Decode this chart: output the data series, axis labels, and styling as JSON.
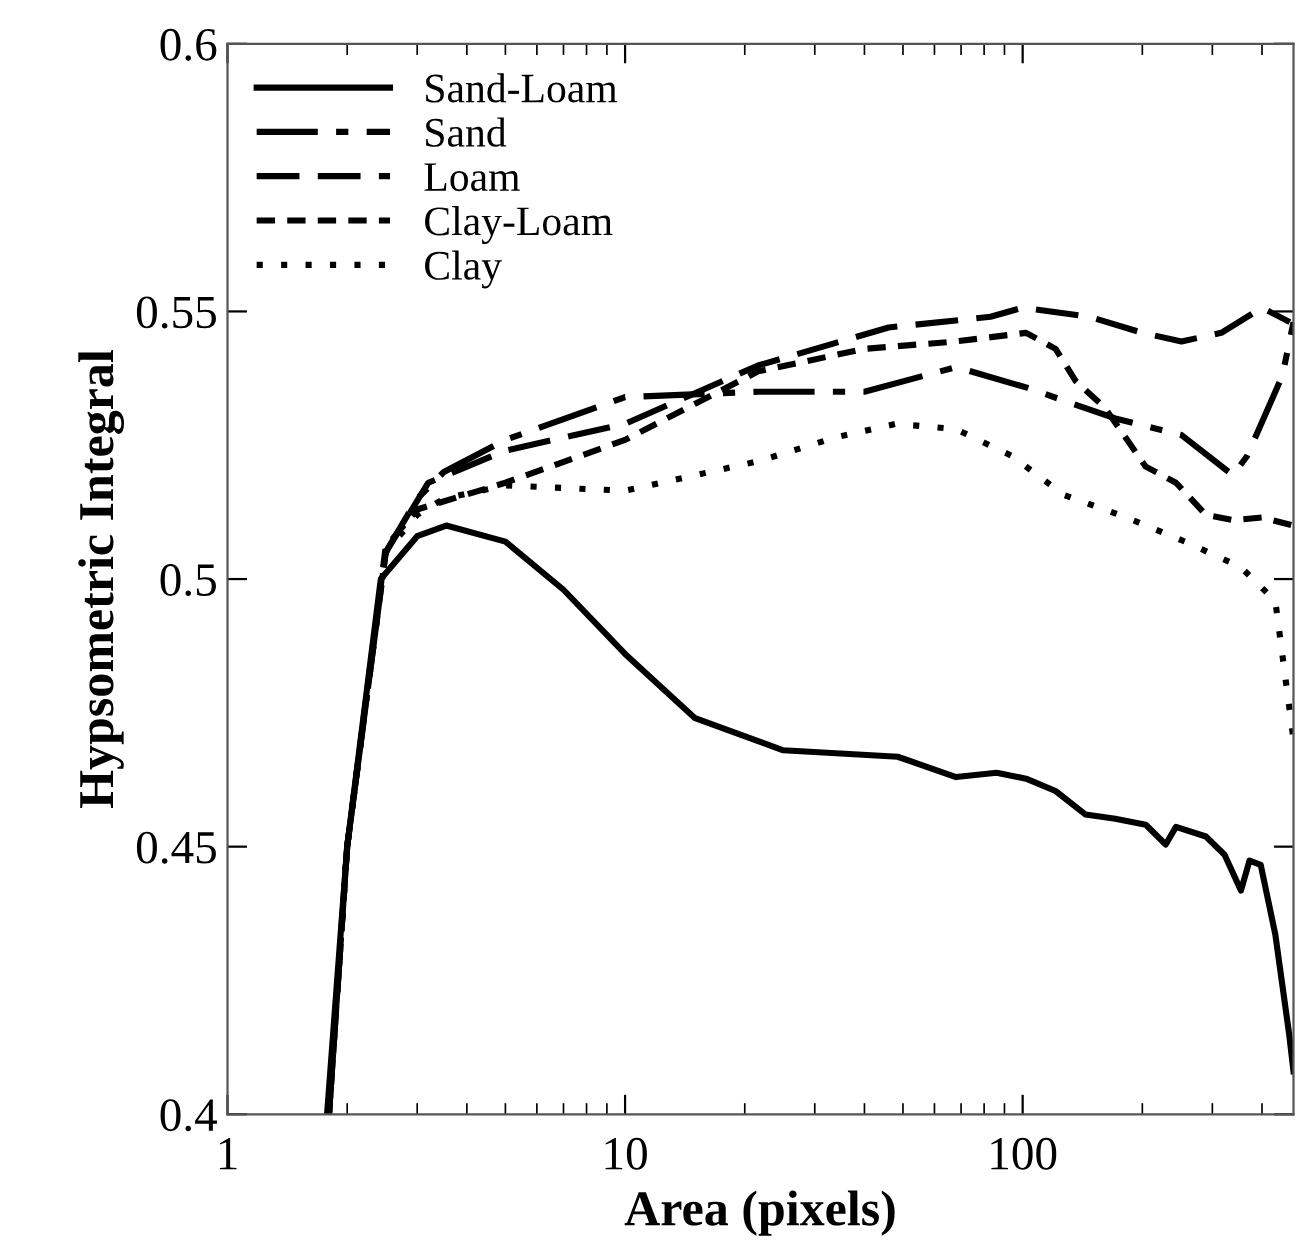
{
  "chart_data": {
    "type": "line",
    "xlabel": "Area (pixels)",
    "ylabel": "Hypsometric Integral",
    "log": "x",
    "xlim": [
      1,
      480
    ],
    "xticks": [
      1,
      10,
      100
    ],
    "ylim": [
      0.4,
      0.6
    ],
    "yticks": [
      0.4,
      0.45,
      0.5,
      0.55,
      0.6
    ],
    "grid": false,
    "legend": "top left",
    "marker": "none",
    "series": [
      {
        "name": "Sand-Loam",
        "color": "#000000",
        "line_style": "solid",
        "x": [
          1.78,
          2.0,
          2.43,
          3.0,
          3.55,
          5,
          7,
          10,
          15,
          25,
          48.5,
          68,
          86,
          102,
          121,
          144,
          171,
          204,
          229,
          243,
          289,
          322,
          354,
          372,
          397,
          432,
          468,
          480
        ],
        "values": [
          0.4,
          0.45,
          0.5,
          0.508,
          0.51,
          0.507,
          0.498,
          0.486,
          0.474,
          0.468,
          0.4668,
          0.463,
          0.4638,
          0.4627,
          0.4604,
          0.456,
          0.4552,
          0.4541,
          0.4504,
          0.4537,
          0.4519,
          0.4485,
          0.4418,
          0.4474,
          0.4466,
          0.4336,
          0.415,
          0.408
        ]
      },
      {
        "name": "Sand",
        "color": "#000000",
        "line_style": "dashdot",
        "x": [
          1.8,
          2.0,
          2.5,
          3.0,
          3.5,
          5,
          10,
          21.6,
          40,
          68,
          102,
          171,
          251,
          338,
          367,
          450,
          480
        ],
        "values": [
          0.4,
          0.45,
          0.505,
          0.515,
          0.52,
          0.526,
          0.534,
          0.535,
          0.535,
          0.5396,
          0.5358,
          0.53,
          0.5269,
          0.5194,
          0.523,
          0.538,
          0.548
        ]
      },
      {
        "name": "Loam",
        "color": "#000000",
        "line_style": "dashed",
        "x": [
          1.8,
          2.0,
          2.5,
          3.2,
          5,
          10,
          21.6,
          46,
          83,
          100,
          147,
          200,
          251,
          316,
          400,
          470
        ],
        "values": [
          0.4,
          0.45,
          0.505,
          0.518,
          0.524,
          0.529,
          0.5399,
          0.547,
          0.549,
          0.5507,
          0.549,
          0.546,
          0.5444,
          0.546,
          0.5507,
          0.548
        ]
      },
      {
        "name": "Clay-Loam",
        "color": "#000000",
        "line_style": "shortdash",
        "x": [
          1.8,
          2.0,
          2.5,
          3.0,
          5,
          10,
          21.6,
          40,
          68,
          102,
          121,
          136,
          161,
          204,
          243,
          289,
          338,
          400,
          480
        ],
        "values": [
          0.4,
          0.45,
          0.506,
          0.513,
          0.518,
          0.526,
          0.5388,
          0.543,
          0.5444,
          0.546,
          0.543,
          0.537,
          0.532,
          0.521,
          0.518,
          0.512,
          0.511,
          0.5115,
          0.51
        ]
      },
      {
        "name": "Clay",
        "color": "#000000",
        "line_style": "dotted",
        "x": [
          1.8,
          2.0,
          2.5,
          3.0,
          3.5,
          5,
          10,
          21.6,
          34,
          48,
          68,
          94,
          127,
          181,
          256,
          354,
          432,
          480
        ],
        "values": [
          0.4,
          0.45,
          0.505,
          0.512,
          0.515,
          0.5175,
          0.5165,
          0.522,
          0.5265,
          0.529,
          0.528,
          0.523,
          0.5157,
          0.5116,
          0.507,
          0.5022,
          0.4959,
          0.47
        ]
      }
    ]
  }
}
